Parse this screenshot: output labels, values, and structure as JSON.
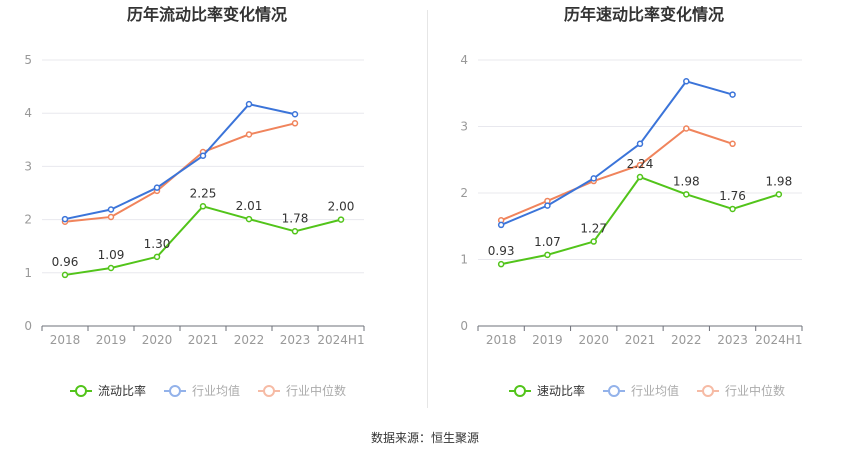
{
  "source": {
    "label": "数据来源：",
    "name": "恒生聚源"
  },
  "chart_data": [
    {
      "type": "line",
      "title": "历年流动比率变化情况",
      "categories": [
        "2018",
        "2019",
        "2020",
        "2021",
        "2022",
        "2023",
        "2024H1"
      ],
      "ylim": [
        0,
        5
      ],
      "yticks": [
        0,
        1,
        2,
        3,
        4,
        5
      ],
      "grid": true,
      "legend_position": "bottom",
      "series": [
        {
          "name": "流动比率",
          "color": "#52c41a",
          "values": [
            0.96,
            1.09,
            1.3,
            2.25,
            2.01,
            1.78,
            2.0
          ],
          "labels": [
            "0.96",
            "1.09",
            "1.30",
            "2.25",
            "2.01",
            "1.78",
            "2.00"
          ]
        },
        {
          "name": "行业均值",
          "color": "#3b74d9",
          "values": [
            2.01,
            2.19,
            2.6,
            3.2,
            4.17,
            3.98,
            null
          ]
        },
        {
          "name": "行业中位数",
          "color": "#f0845c",
          "values": [
            1.96,
            2.05,
            2.54,
            3.27,
            3.6,
            3.81,
            null
          ]
        }
      ]
    },
    {
      "type": "line",
      "title": "历年速动比率变化情况",
      "categories": [
        "2018",
        "2019",
        "2020",
        "2021",
        "2022",
        "2023",
        "2024H1"
      ],
      "ylim": [
        0,
        4
      ],
      "yticks": [
        0,
        1,
        2,
        3,
        4
      ],
      "grid": true,
      "legend_position": "bottom",
      "series": [
        {
          "name": "速动比率",
          "color": "#52c41a",
          "values": [
            0.93,
            1.07,
            1.27,
            2.24,
            1.98,
            1.76,
            1.98
          ],
          "labels": [
            "0.93",
            "1.07",
            "1.27",
            "2.24",
            "1.98",
            "1.76",
            "1.98"
          ]
        },
        {
          "name": "行业均值",
          "color": "#3b74d9",
          "values": [
            1.52,
            1.81,
            2.22,
            2.74,
            3.68,
            3.48,
            null
          ]
        },
        {
          "name": "行业中位数",
          "color": "#f0845c",
          "values": [
            1.59,
            1.88,
            2.18,
            2.42,
            2.97,
            2.74,
            null
          ]
        }
      ]
    }
  ]
}
